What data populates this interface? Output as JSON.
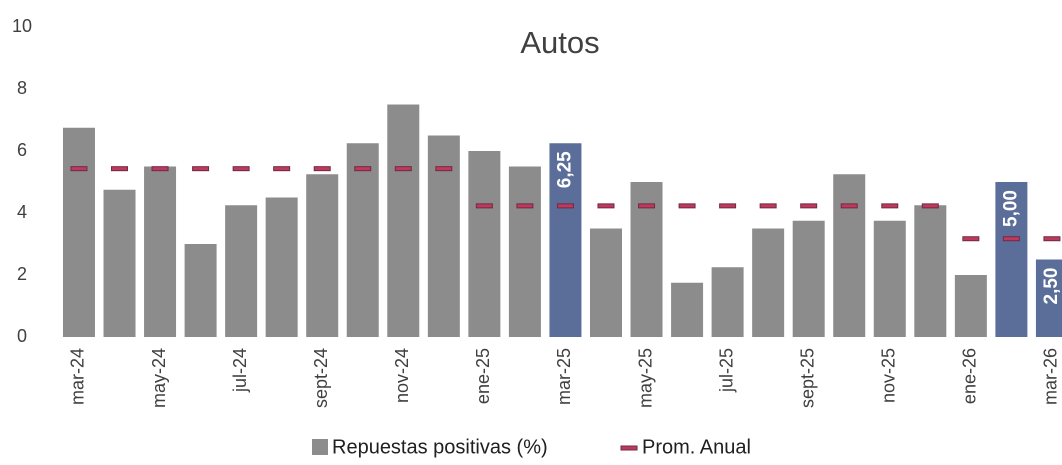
{
  "chart_data": {
    "type": "bar",
    "title": "Autos",
    "categories": [
      "mar-24",
      null,
      "may-24",
      null,
      "jul-24",
      null,
      "sept-24",
      null,
      "nov-24",
      null,
      "ene-25",
      null,
      "mar-25",
      null,
      "may-25",
      null,
      "jul-25",
      null,
      "sept-25",
      null,
      "nov-25",
      null,
      "ene-26",
      null,
      "mar-26"
    ],
    "series": [
      {
        "name": "Repuestas positivas (%)",
        "color": "#8c8c8c",
        "colors": [
          "#8c8c8c",
          "#8c8c8c",
          "#8c8c8c",
          "#8c8c8c",
          "#8c8c8c",
          "#8c8c8c",
          "#8c8c8c",
          "#8c8c8c",
          "#8c8c8c",
          "#8c8c8c",
          "#8c8c8c",
          "#8c8c8c",
          "#5b6e99",
          "#8c8c8c",
          "#8c8c8c",
          "#8c8c8c",
          "#8c8c8c",
          "#8c8c8c",
          "#8c8c8c",
          "#8c8c8c",
          "#8c8c8c",
          "#8c8c8c",
          "#8c8c8c",
          "#5b6e99",
          "#5b6e99"
        ],
        "values": [
          6.75,
          4.75,
          5.5,
          3.0,
          4.25,
          4.5,
          5.25,
          6.25,
          7.5,
          6.5,
          6.0,
          5.5,
          6.25,
          3.5,
          5.0,
          1.75,
          2.25,
          3.5,
          3.75,
          5.25,
          3.75,
          4.25,
          2.0,
          5.0,
          2.5
        ],
        "value_labels": [
          null,
          null,
          null,
          null,
          null,
          null,
          null,
          null,
          null,
          null,
          null,
          null,
          "6,25",
          null,
          null,
          null,
          null,
          null,
          null,
          null,
          null,
          null,
          null,
          "5,00",
          "2,50"
        ]
      },
      {
        "name": "Prom. Anual",
        "color": "#c0395a",
        "marker": "dash",
        "values": [
          5.43,
          5.43,
          5.43,
          5.43,
          5.43,
          5.43,
          5.43,
          5.43,
          5.43,
          5.43,
          4.23,
          4.23,
          4.23,
          4.23,
          4.23,
          4.23,
          4.23,
          4.23,
          4.23,
          4.23,
          4.23,
          4.23,
          3.17,
          3.17,
          3.17
        ]
      }
    ],
    "ylim": [
      0,
      10
    ],
    "yticks": [
      0,
      2,
      4,
      6,
      8,
      10
    ],
    "grid": false
  }
}
